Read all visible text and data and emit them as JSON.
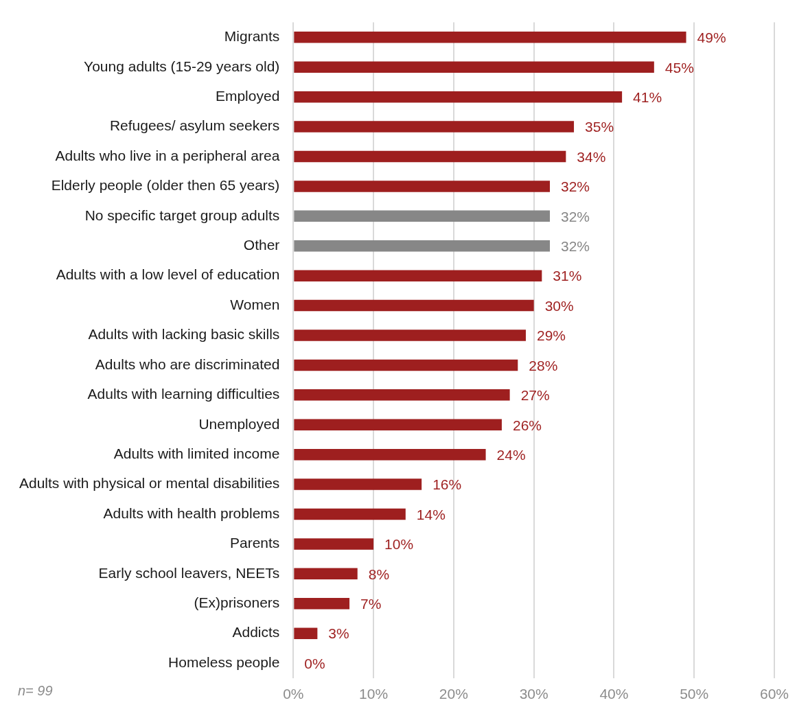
{
  "chart_data": {
    "type": "bar",
    "orientation": "horizontal",
    "categories": [
      "Migrants",
      "Young adults (15-29 years old)",
      "Employed",
      "Refugees/ asylum seekers",
      "Adults who live in a peripheral area",
      "Elderly people (older then 65 years)",
      "No specific target group adults",
      "Other",
      "Adults with a low level of education",
      "Women",
      "Adults with lacking basic skills",
      "Adults who are discriminated",
      "Adults with learning difficulties",
      "Unemployed",
      "Adults with limited income",
      "Adults with physical or mental disabilities",
      "Adults with health problems",
      "Parents",
      "Early school leavers, NEETs",
      "(Ex)prisoners",
      "Addicts",
      "Homeless people"
    ],
    "values": [
      49,
      45,
      41,
      35,
      34,
      32,
      32,
      32,
      31,
      30,
      29,
      28,
      27,
      26,
      24,
      16,
      14,
      10,
      8,
      7,
      3,
      0
    ],
    "value_labels": [
      "49%",
      "45%",
      "41%",
      "35%",
      "34%",
      "32%",
      "32%",
      "32%",
      "31%",
      "30%",
      "29%",
      "28%",
      "27%",
      "26%",
      "24%",
      "16%",
      "14%",
      "10%",
      "8%",
      "7%",
      "3%",
      "0%"
    ],
    "colors": [
      "#9e1f1f",
      "#9e1f1f",
      "#9e1f1f",
      "#9e1f1f",
      "#9e1f1f",
      "#9e1f1f",
      "#878787",
      "#878787",
      "#9e1f1f",
      "#9e1f1f",
      "#9e1f1f",
      "#9e1f1f",
      "#9e1f1f",
      "#9e1f1f",
      "#9e1f1f",
      "#9e1f1f",
      "#9e1f1f",
      "#9e1f1f",
      "#9e1f1f",
      "#9e1f1f",
      "#9e1f1f",
      "#9e1f1f"
    ],
    "xlim": [
      0,
      60
    ],
    "xticks": [
      {
        "value": 0,
        "label": "0%"
      },
      {
        "value": 10,
        "label": "10%"
      },
      {
        "value": 20,
        "label": "20%"
      },
      {
        "value": 30,
        "label": "30%"
      },
      {
        "value": 40,
        "label": "40%"
      },
      {
        "value": 50,
        "label": "50%"
      },
      {
        "value": 60,
        "label": "60%"
      }
    ],
    "grid": "x",
    "legend": false,
    "annotations": [
      "n= 99"
    ]
  }
}
